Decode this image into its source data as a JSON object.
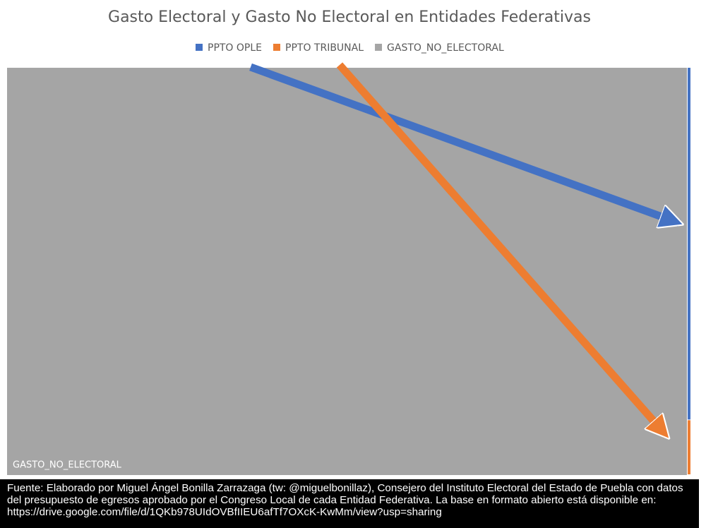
{
  "chart_data": {
    "type": "treemap",
    "title": "Gasto Electoral y Gasto No Electoral en Entidades Federativas",
    "categories": [
      "PPTO OPLE",
      "PPTO TRIBUNAL",
      "GASTO_NO_ELECTORAL"
    ],
    "values": [
      0.45,
      0.07,
      99.48
    ],
    "colors": [
      "#4472c4",
      "#ed7d31",
      "#a5a5a5"
    ],
    "source": "Fuente: Elaborado por Miguel Ángel Bonilla Zarrazaga (tw: @miguelbonillaz), Consejero del Instituto Electoral del Estado de Puebla con datos del presupuesto de egresos aprobado por el Congreso Local de cada Entidad Federativa. La base en formato abierto está disponible en: https://drive.google.com/file/d/1QKb978UIdOVBfIIEU6afTf7OXcK-KwMm/view?usp=sharing"
  }
}
